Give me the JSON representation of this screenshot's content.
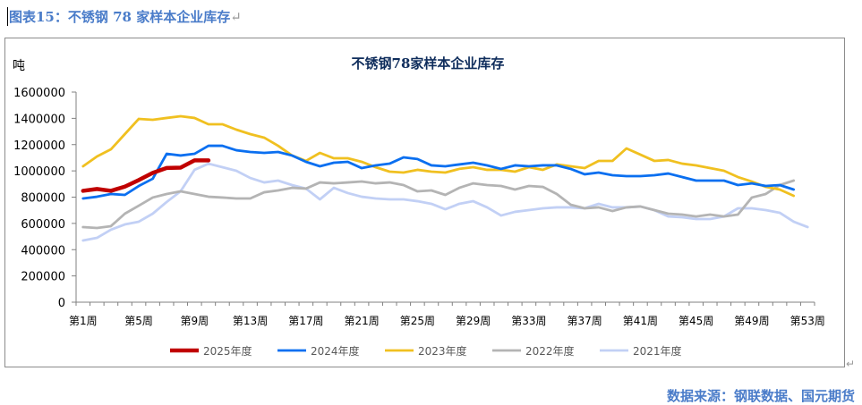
{
  "caption": "图表15：不锈钢 78 家样本企业库存",
  "source": "数据来源：钢联数据、国元期货",
  "chart_data": {
    "type": "line",
    "title": "不锈钢78家样本企业库存",
    "ylabel": "吨",
    "xlabel": "",
    "ylim": [
      0,
      1600000
    ],
    "yticks": [
      0,
      200000,
      400000,
      600000,
      800000,
      1000000,
      1200000,
      1400000,
      1600000
    ],
    "ytick_labels": [
      "0",
      "200000",
      "400000",
      "600000",
      "800000",
      "1000000",
      "1200000",
      "1400000",
      "1600000"
    ],
    "categories_count": 53,
    "xtick_labels": [
      "第1周",
      "第5周",
      "第9周",
      "第13周",
      "第17周",
      "第21周",
      "第25周",
      "第29周",
      "第33周",
      "第37周",
      "第41周",
      "第45周",
      "第49周",
      "第53周"
    ],
    "grid": false,
    "legend": "bottom",
    "series": [
      {
        "name": "2025年度",
        "color": "#c00000",
        "width": 4.5,
        "values": [
          848000,
          862000,
          848000,
          880000,
          930000,
          985000,
          1022000,
          1025000,
          1080000,
          1080000
        ]
      },
      {
        "name": "2024年度",
        "color": "#0a6ff0",
        "width": 2.8,
        "values": [
          790000,
          803000,
          824000,
          817000,
          885000,
          940000,
          1130000,
          1117000,
          1130000,
          1191000,
          1191000,
          1157000,
          1144000,
          1137000,
          1144000,
          1117000,
          1069000,
          1035000,
          1062000,
          1069000,
          1021000,
          1042000,
          1055000,
          1103000,
          1090000,
          1042000,
          1035000,
          1049000,
          1062000,
          1042000,
          1015000,
          1042000,
          1035000,
          1042000,
          1042000,
          1015000,
          974000,
          987000,
          967000,
          960000,
          960000,
          967000,
          980000,
          953000,
          926000,
          926000,
          926000,
          892000,
          905000,
          885000,
          892000,
          858000
        ]
      },
      {
        "name": "2023年度",
        "color": "#f0c020",
        "width": 2.8,
        "values": [
          1035000,
          1110000,
          1164000,
          1280000,
          1396000,
          1389000,
          1403000,
          1416000,
          1403000,
          1355000,
          1355000,
          1314000,
          1280000,
          1253000,
          1191000,
          1117000,
          1076000,
          1137000,
          1096000,
          1096000,
          1069000,
          1028000,
          994000,
          987000,
          1008000,
          994000,
          987000,
          1015000,
          1028000,
          1008000,
          1008000,
          994000,
          1028000,
          1008000,
          1049000,
          1035000,
          1021000,
          1076000,
          1076000,
          1171000,
          1124000,
          1076000,
          1083000,
          1055000,
          1042000,
          1021000,
          1001000,
          953000,
          919000,
          878000,
          858000,
          810000
        ]
      },
      {
        "name": "2022年度",
        "color": "#b4b4b4",
        "width": 2.8,
        "values": [
          572000,
          565000,
          579000,
          674000,
          735000,
          797000,
          824000,
          844000,
          824000,
          803000,
          797000,
          790000,
          790000,
          837000,
          851000,
          871000,
          865000,
          912000,
          905000,
          912000,
          919000,
          905000,
          912000,
          892000,
          844000,
          851000,
          817000,
          871000,
          905000,
          892000,
          885000,
          858000,
          885000,
          878000,
          824000,
          742000,
          715000,
          722000,
          694000,
          722000,
          729000,
          701000,
          674000,
          667000,
          653000,
          667000,
          653000,
          667000,
          797000,
          824000,
          892000,
          926000
        ]
      },
      {
        "name": "2021年度",
        "color": "#c2d0f5",
        "width": 2.8,
        "values": [
          470000,
          490000,
          552000,
          592000,
          613000,
          674000,
          763000,
          844000,
          1008000,
          1055000,
          1028000,
          1001000,
          946000,
          912000,
          926000,
          892000,
          865000,
          783000,
          871000,
          831000,
          803000,
          790000,
          783000,
          783000,
          769000,
          749000,
          708000,
          749000,
          769000,
          722000,
          660000,
          688000,
          701000,
          715000,
          722000,
          722000,
          715000,
          749000,
          722000,
          722000,
          729000,
          701000,
          653000,
          647000,
          633000,
          633000,
          653000,
          715000,
          715000,
          701000,
          681000,
          613000,
          572000
        ]
      }
    ]
  }
}
